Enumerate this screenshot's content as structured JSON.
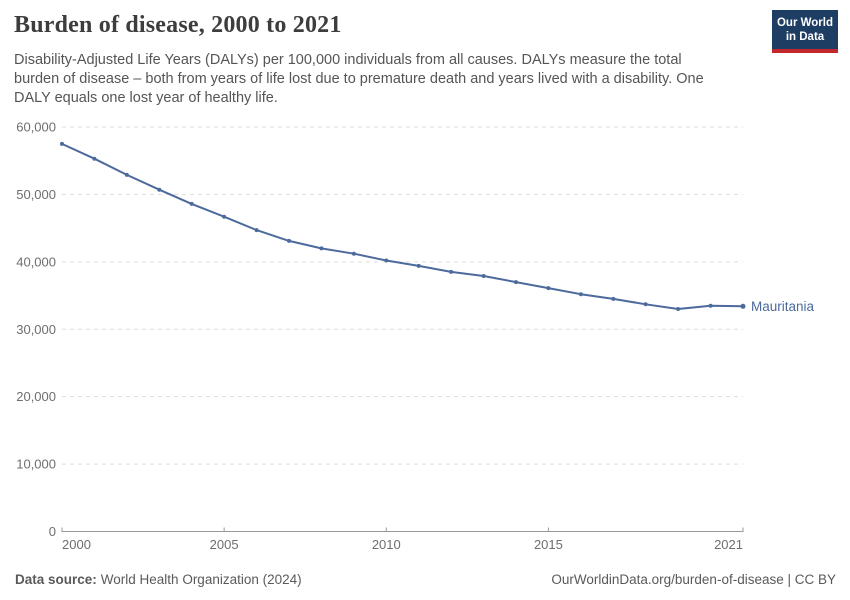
{
  "header": {
    "title": "Burden of disease, 2000 to 2021",
    "subtitle_lines": [
      "Disability-Adjusted Life Years (DALYs) per 100,000 individuals from all causes. DALYs measure the total",
      "burden of disease – both from years of life lost due to premature death and years lived with a disability. One",
      "DALY equals one lost year of healthy life."
    ],
    "logo": {
      "line1": "Our World",
      "line2": "in Data"
    }
  },
  "chart_data": {
    "type": "line",
    "title": "Burden of disease, 2000 to 2021",
    "xlabel": "",
    "ylabel": "",
    "x": [
      2000,
      2001,
      2002,
      2003,
      2004,
      2005,
      2006,
      2007,
      2008,
      2009,
      2010,
      2011,
      2012,
      2013,
      2014,
      2015,
      2016,
      2017,
      2018,
      2019,
      2020,
      2021
    ],
    "series": [
      {
        "name": "Mauritania",
        "color": "#4C6A9C",
        "values": [
          57500,
          55300,
          52900,
          50700,
          48600,
          46700,
          44700,
          43100,
          42000,
          41200,
          40200,
          39400,
          38500,
          37900,
          37000,
          36100,
          35200,
          34500,
          33700,
          33000,
          33500,
          33400
        ]
      }
    ],
    "ylim": [
      0,
      60000
    ],
    "yticks": [
      0,
      10000,
      20000,
      30000,
      40000,
      50000,
      60000
    ],
    "ytick_labels": [
      "0",
      "10,000",
      "20,000",
      "30,000",
      "40,000",
      "50,000",
      "60,000"
    ],
    "xticks": [
      2000,
      2005,
      2010,
      2015,
      2021
    ],
    "xtick_labels": [
      "2000",
      "2005",
      "2010",
      "2015",
      "2021"
    ],
    "grid": "horizontal-dashed",
    "legend": "line-end-label"
  },
  "footer": {
    "source_label": "Data source:",
    "source_value": "World Health Organization (2024)",
    "attribution": "OurWorldinData.org/burden-of-disease | CC BY"
  },
  "colors": {
    "line": "#4C6A9C",
    "grid": "#dddddd",
    "axis": "#999999",
    "tick_text": "#6e6e6e",
    "title_text": "#3d3d3d",
    "subtitle_text": "#555555",
    "footer_text": "#5a5a5a",
    "logo_bg": "#1d3d63",
    "logo_accent": "#c2272d"
  }
}
